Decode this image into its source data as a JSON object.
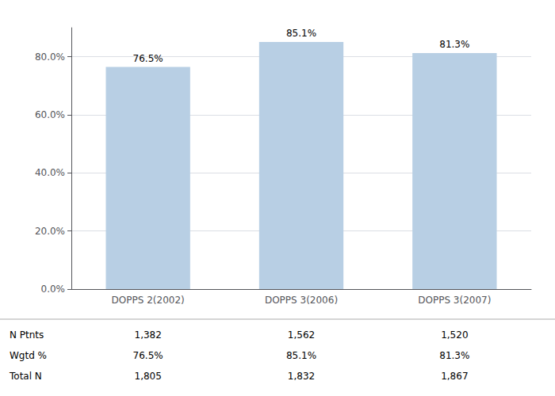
{
  "chart_data": {
    "type": "bar",
    "categories": [
      "DOPPS 2(2002)",
      "DOPPS 3(2006)",
      "DOPPS 3(2007)"
    ],
    "values": [
      76.5,
      85.1,
      81.3
    ],
    "value_labels": [
      "76.5%",
      "85.1%",
      "81.3%"
    ],
    "data_labels": true,
    "color": "#b8cfe4",
    "ylim": [
      0,
      90
    ],
    "yticks": [
      {
        "value": 0,
        "label": "0.0%"
      },
      {
        "value": 20,
        "label": "20.0%"
      },
      {
        "value": 40,
        "label": "40.0%"
      },
      {
        "value": 60,
        "label": "60.0%"
      },
      {
        "value": 80,
        "label": "80.0%"
      }
    ],
    "grid": true,
    "table": {
      "row_labels": [
        "N Ptnts",
        "Wgtd %",
        "Total N"
      ],
      "cells": [
        [
          "1,382",
          "1,562",
          "1,520"
        ],
        [
          "76.5%",
          "85.1%",
          "81.3%"
        ],
        [
          "1,805",
          "1,832",
          "1,867"
        ]
      ]
    }
  }
}
